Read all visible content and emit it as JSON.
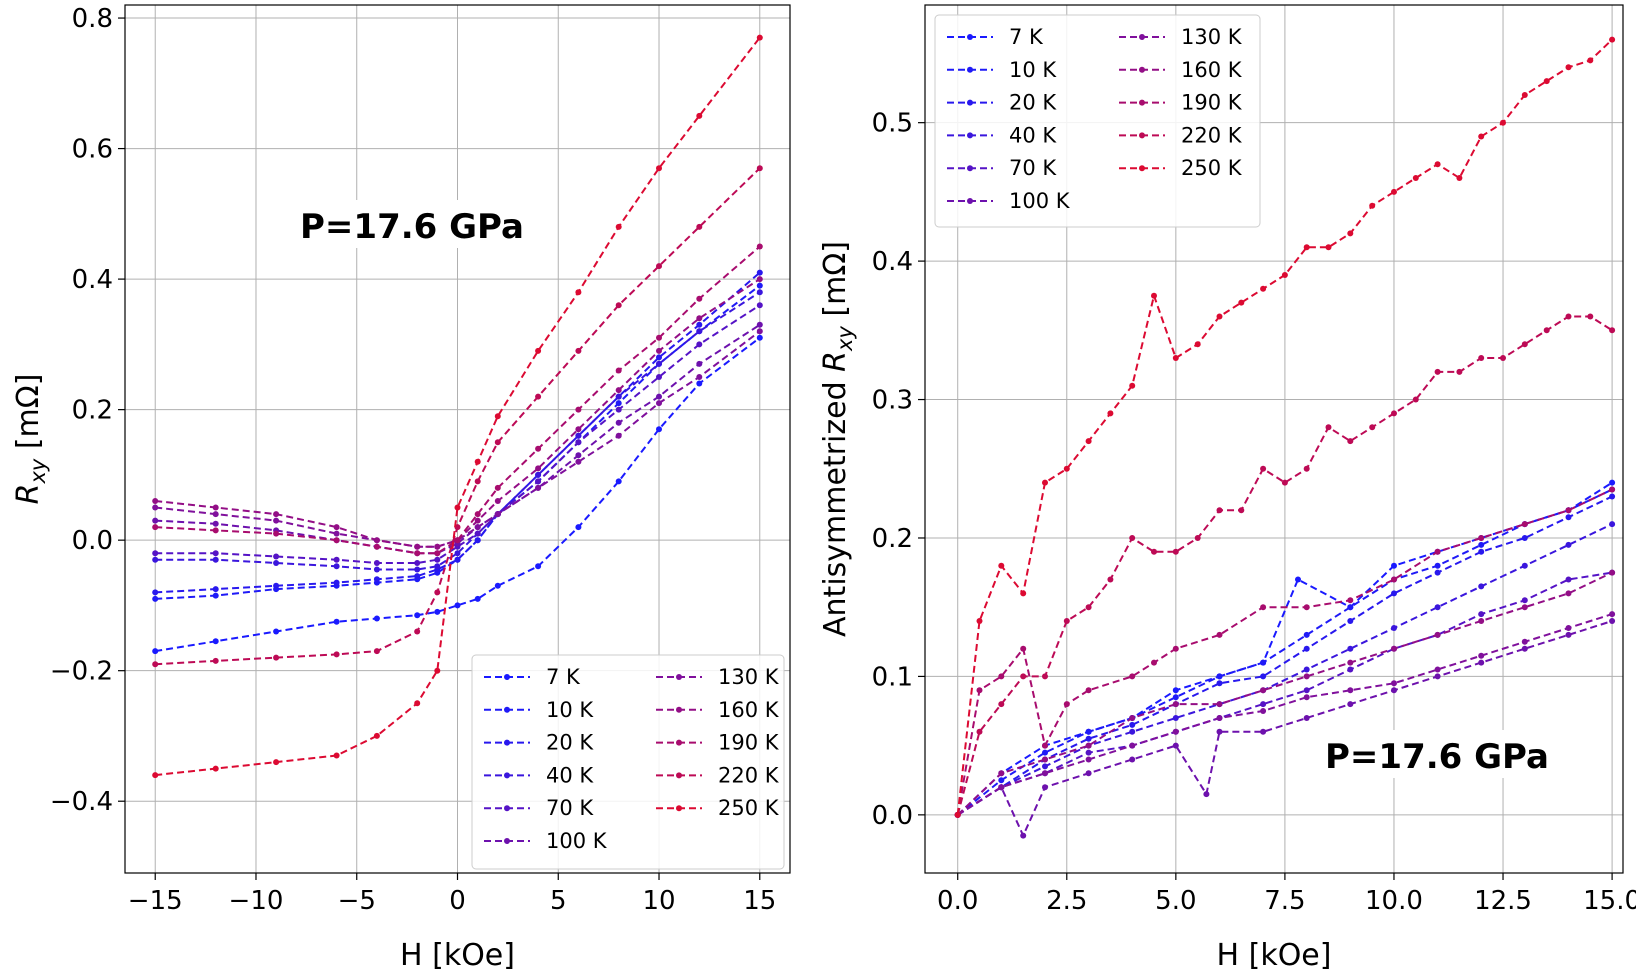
{
  "chart_data": [
    {
      "type": "line",
      "title": "",
      "xlabel": "H [kOe]",
      "ylabel": "R",
      "ylabel_sub": "xy",
      "ylabel_unit": " [mΩ]",
      "xlim": [
        -16.5,
        16.5
      ],
      "ylim": [
        -0.51,
        0.82
      ],
      "xticks": [
        -15,
        -10,
        -5,
        0,
        5,
        10,
        15
      ],
      "xtick_labels": [
        "−15",
        "−10",
        "−5",
        "0",
        "5",
        "10",
        "15"
      ],
      "yticks": [
        -0.4,
        -0.2,
        0.0,
        0.2,
        0.4,
        0.6,
        0.8
      ],
      "ytick_labels": [
        "−0.4",
        "−0.2",
        "0.0",
        "0.2",
        "0.4",
        "0.6",
        "0.8"
      ],
      "grid": true,
      "annotation": "P=17.6 GPa",
      "legend_position": "lower-right",
      "legend_columns": 2,
      "series": [
        {
          "name": "7 K",
          "color": "#1a1aff",
          "x": [
            -15,
            -12,
            -9,
            -6,
            -4,
            -2,
            -1,
            0,
            1,
            2,
            4,
            6,
            8,
            10,
            12,
            15
          ],
          "y": [
            -0.17,
            -0.155,
            -0.14,
            -0.125,
            -0.12,
            -0.115,
            -0.11,
            -0.1,
            -0.09,
            -0.07,
            -0.04,
            0.02,
            0.09,
            0.17,
            0.24,
            0.31
          ]
        },
        {
          "name": "10 K",
          "color": "#1f1af7",
          "x": [
            -15,
            -12,
            -9,
            -6,
            -4,
            -2,
            -1,
            0,
            1,
            2,
            4,
            6,
            8,
            10,
            12,
            15
          ],
          "y": [
            -0.09,
            -0.085,
            -0.075,
            -0.07,
            -0.065,
            -0.06,
            -0.05,
            -0.03,
            0.0,
            0.04,
            0.09,
            0.15,
            0.21,
            0.27,
            0.32,
            0.39
          ]
        },
        {
          "name": "20 K",
          "color": "#2818ee",
          "x": [
            -15,
            -12,
            -9,
            -6,
            -4,
            -2,
            -1,
            0,
            1,
            2,
            4,
            6,
            8,
            10,
            12,
            15
          ],
          "y": [
            -0.08,
            -0.075,
            -0.07,
            -0.065,
            -0.06,
            -0.055,
            -0.045,
            -0.03,
            0.0,
            0.04,
            0.1,
            0.16,
            0.22,
            0.28,
            0.33,
            0.41
          ]
        },
        {
          "name": "40 K",
          "color": "#3a16dd",
          "x": [
            -15,
            -12,
            -9,
            -6,
            -4,
            -2,
            -1,
            0,
            1,
            2,
            4,
            6,
            8,
            10,
            12,
            15
          ],
          "y": [
            -0.03,
            -0.03,
            -0.035,
            -0.04,
            -0.045,
            -0.045,
            -0.04,
            -0.02,
            0.01,
            0.04,
            0.1,
            0.16,
            0.22,
            0.27,
            0.32,
            0.38
          ]
        },
        {
          "name": "70 K",
          "color": "#5513c6",
          "x": [
            -15,
            -12,
            -9,
            -6,
            -4,
            -2,
            -1,
            0,
            1,
            2,
            4,
            6,
            8,
            10,
            12,
            15
          ],
          "y": [
            -0.02,
            -0.02,
            -0.025,
            -0.03,
            -0.035,
            -0.035,
            -0.03,
            -0.01,
            0.01,
            0.04,
            0.09,
            0.15,
            0.2,
            0.25,
            0.3,
            0.36
          ]
        },
        {
          "name": "100 K",
          "color": "#6d11ad",
          "x": [
            -15,
            -12,
            -9,
            -6,
            -4,
            -2,
            -1,
            0,
            1,
            2,
            4,
            6,
            8,
            10,
            12,
            15
          ],
          "y": [
            0.03,
            0.025,
            0.015,
            0.0,
            -0.01,
            -0.02,
            -0.02,
            -0.005,
            0.02,
            0.04,
            0.08,
            0.13,
            0.18,
            0.22,
            0.27,
            0.33
          ]
        },
        {
          "name": "130 K",
          "color": "#80109c",
          "x": [
            -15,
            -12,
            -9,
            -6,
            -4,
            -2,
            -1,
            0,
            1,
            2,
            4,
            6,
            8,
            10,
            12,
            15
          ],
          "y": [
            0.05,
            0.04,
            0.03,
            0.01,
            0.0,
            -0.01,
            -0.01,
            0.0,
            0.02,
            0.04,
            0.08,
            0.12,
            0.16,
            0.21,
            0.25,
            0.32
          ]
        },
        {
          "name": "160 K",
          "color": "#930e86",
          "x": [
            -15,
            -12,
            -9,
            -6,
            -4,
            -2,
            -1,
            0,
            1,
            2,
            4,
            6,
            8,
            10,
            12,
            15
          ],
          "y": [
            0.06,
            0.05,
            0.04,
            0.02,
            0.0,
            -0.01,
            -0.01,
            0.0,
            0.03,
            0.06,
            0.11,
            0.17,
            0.23,
            0.29,
            0.34,
            0.4
          ]
        },
        {
          "name": "190 K",
          "color": "#a80c6e",
          "x": [
            -15,
            -12,
            -9,
            -6,
            -4,
            -2,
            -1,
            0,
            1,
            2,
            4,
            6,
            8,
            10,
            12,
            15
          ],
          "y": [
            0.02,
            0.015,
            0.01,
            0.0,
            -0.01,
            -0.02,
            -0.02,
            0.0,
            0.04,
            0.08,
            0.14,
            0.2,
            0.26,
            0.31,
            0.37,
            0.45
          ]
        },
        {
          "name": "220 K",
          "color": "#bd0a55",
          "x": [
            -15,
            -12,
            -9,
            -6,
            -4,
            -2,
            -1,
            0,
            1,
            2,
            4,
            6,
            8,
            10,
            12,
            15
          ],
          "y": [
            -0.19,
            -0.185,
            -0.18,
            -0.175,
            -0.17,
            -0.14,
            -0.08,
            0.02,
            0.09,
            0.15,
            0.22,
            0.29,
            0.36,
            0.42,
            0.48,
            0.57
          ]
        },
        {
          "name": "250 K",
          "color": "#dc0a32",
          "x": [
            -15,
            -12,
            -9,
            -6,
            -4,
            -2,
            -1,
            0,
            1,
            2,
            4,
            6,
            8,
            10,
            12,
            15
          ],
          "y": [
            -0.36,
            -0.35,
            -0.34,
            -0.33,
            -0.3,
            -0.25,
            -0.2,
            0.05,
            0.12,
            0.19,
            0.29,
            0.38,
            0.48,
            0.57,
            0.65,
            0.77
          ]
        }
      ]
    },
    {
      "type": "line",
      "title": "",
      "xlabel": "H [kOe]",
      "ylabel": "Antisymmetrized R",
      "ylabel_sub": "xy",
      "ylabel_unit": " [mΩ]",
      "xlim": [
        -0.75,
        15.25
      ],
      "ylim": [
        -0.042,
        0.585
      ],
      "xticks": [
        0.0,
        2.5,
        5.0,
        7.5,
        10.0,
        12.5,
        15.0
      ],
      "xtick_labels": [
        "0.0",
        "2.5",
        "5.0",
        "7.5",
        "10.0",
        "12.5",
        "15.0"
      ],
      "yticks": [
        0.0,
        0.1,
        0.2,
        0.3,
        0.4,
        0.5
      ],
      "ytick_labels": [
        "0.0",
        "0.1",
        "0.2",
        "0.3",
        "0.4",
        "0.5"
      ],
      "grid": true,
      "annotation": "P=17.6 GPa",
      "legend_position": "upper-left",
      "legend_columns": 2,
      "series": [
        {
          "name": "7 K",
          "color": "#1a1aff",
          "x": [
            0,
            1,
            2,
            3,
            4,
            5,
            6,
            7,
            7.8,
            9,
            10,
            11,
            12,
            13,
            14,
            15
          ],
          "y": [
            0,
            0.03,
            0.05,
            0.06,
            0.07,
            0.09,
            0.1,
            0.11,
            0.17,
            0.15,
            0.18,
            0.19,
            0.2,
            0.21,
            0.22,
            0.24
          ]
        },
        {
          "name": "10 K",
          "color": "#1f1af7",
          "x": [
            0,
            1,
            2,
            3,
            4,
            5,
            6,
            7,
            8,
            9,
            10,
            11,
            12,
            13,
            14,
            15
          ],
          "y": [
            0,
            0.025,
            0.045,
            0.06,
            0.07,
            0.085,
            0.1,
            0.11,
            0.13,
            0.15,
            0.17,
            0.18,
            0.195,
            0.21,
            0.22,
            0.235
          ]
        },
        {
          "name": "20 K",
          "color": "#2818ee",
          "x": [
            0,
            1,
            2,
            3,
            4,
            5,
            6,
            7,
            8,
            9,
            10,
            11,
            12,
            13,
            14,
            15
          ],
          "y": [
            0,
            0.02,
            0.04,
            0.055,
            0.065,
            0.08,
            0.095,
            0.1,
            0.12,
            0.14,
            0.16,
            0.175,
            0.19,
            0.2,
            0.215,
            0.23
          ]
        },
        {
          "name": "40 K",
          "color": "#3a16dd",
          "x": [
            0,
            1,
            2,
            3,
            4,
            5,
            6,
            7,
            8,
            9,
            10,
            11,
            12,
            13,
            14,
            15
          ],
          "y": [
            0,
            0.02,
            0.035,
            0.05,
            0.06,
            0.07,
            0.08,
            0.09,
            0.105,
            0.12,
            0.135,
            0.15,
            0.165,
            0.18,
            0.195,
            0.21
          ]
        },
        {
          "name": "70 K",
          "color": "#5513c6",
          "x": [
            0,
            1,
            2,
            3,
            4,
            5,
            6,
            7,
            8,
            9,
            10,
            11,
            12,
            13,
            14,
            15
          ],
          "y": [
            0,
            0.02,
            0.03,
            0.045,
            0.05,
            0.06,
            0.07,
            0.08,
            0.09,
            0.105,
            0.12,
            0.13,
            0.145,
            0.155,
            0.17,
            0.175
          ]
        },
        {
          "name": "100 K",
          "color": "#6d11ad",
          "x": [
            0,
            1,
            1.5,
            2,
            3,
            4,
            5,
            5.7,
            6,
            7,
            8,
            9,
            10,
            11,
            12,
            13,
            14,
            15
          ],
          "y": [
            0,
            0.02,
            -0.015,
            0.02,
            0.03,
            0.04,
            0.05,
            0.015,
            0.06,
            0.06,
            0.07,
            0.08,
            0.09,
            0.1,
            0.11,
            0.12,
            0.13,
            0.14
          ]
        },
        {
          "name": "130 K",
          "color": "#80109c",
          "x": [
            0,
            1,
            2,
            3,
            4,
            5,
            6,
            7,
            8,
            9,
            10,
            11,
            12,
            13,
            14,
            15
          ],
          "y": [
            0,
            0.02,
            0.03,
            0.04,
            0.05,
            0.06,
            0.07,
            0.075,
            0.085,
            0.09,
            0.095,
            0.105,
            0.115,
            0.125,
            0.135,
            0.145
          ]
        },
        {
          "name": "160 K",
          "color": "#930e86",
          "x": [
            0,
            1,
            2,
            3,
            4,
            5,
            6,
            7,
            8,
            9,
            10,
            11,
            12,
            13,
            14,
            15
          ],
          "y": [
            0,
            0.03,
            0.04,
            0.05,
            0.07,
            0.08,
            0.08,
            0.09,
            0.1,
            0.11,
            0.12,
            0.13,
            0.14,
            0.15,
            0.16,
            0.175
          ]
        },
        {
          "name": "190 K",
          "color": "#a80c6e",
          "x": [
            0,
            0.5,
            1,
            1.5,
            2,
            2.5,
            3,
            4,
            4.5,
            5,
            6,
            7,
            8,
            9,
            10,
            11,
            12,
            13,
            14,
            15
          ],
          "y": [
            0,
            0.09,
            0.1,
            0.12,
            0.05,
            0.08,
            0.09,
            0.1,
            0.11,
            0.12,
            0.13,
            0.15,
            0.15,
            0.155,
            0.17,
            0.19,
            0.2,
            0.21,
            0.22,
            0.235
          ]
        },
        {
          "name": "220 K",
          "color": "#bd0a55",
          "x": [
            0,
            0.5,
            1,
            1.5,
            2,
            2.5,
            3,
            3.5,
            4,
            4.5,
            5,
            5.5,
            6,
            6.5,
            7,
            7.5,
            8,
            8.5,
            9,
            9.5,
            10,
            10.5,
            11,
            11.5,
            12,
            12.5,
            13,
            13.5,
            14,
            14.5,
            15
          ],
          "y": [
            0,
            0.06,
            0.08,
            0.1,
            0.1,
            0.14,
            0.15,
            0.17,
            0.2,
            0.19,
            0.19,
            0.2,
            0.22,
            0.22,
            0.25,
            0.24,
            0.25,
            0.28,
            0.27,
            0.28,
            0.29,
            0.3,
            0.32,
            0.32,
            0.33,
            0.33,
            0.34,
            0.35,
            0.36,
            0.36,
            0.35
          ]
        },
        {
          "name": "250 K",
          "color": "#dc0a32",
          "x": [
            0,
            0.5,
            1,
            1.5,
            2,
            2.5,
            3,
            3.5,
            4,
            4.5,
            5,
            5.5,
            6,
            6.5,
            7,
            7.5,
            8,
            8.5,
            9,
            9.5,
            10,
            10.5,
            11,
            11.5,
            12,
            12.5,
            13,
            13.5,
            14,
            14.5,
            15
          ],
          "y": [
            0,
            0.14,
            0.18,
            0.16,
            0.24,
            0.25,
            0.27,
            0.29,
            0.31,
            0.375,
            0.33,
            0.34,
            0.36,
            0.37,
            0.38,
            0.39,
            0.41,
            0.41,
            0.42,
            0.44,
            0.45,
            0.46,
            0.47,
            0.46,
            0.49,
            0.5,
            0.52,
            0.53,
            0.54,
            0.545,
            0.56
          ]
        }
      ]
    }
  ]
}
